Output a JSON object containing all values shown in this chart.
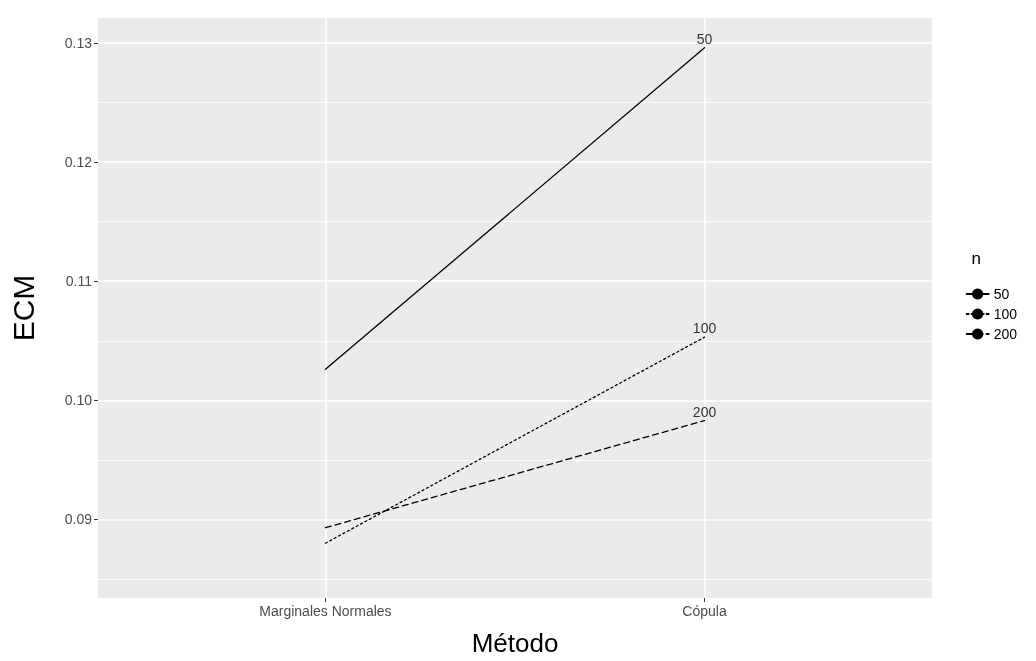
{
  "chart_data": {
    "type": "line",
    "xlabel": "Método",
    "ylabel": "ECM",
    "legend_title": "n",
    "categories": [
      "Marginales Normales",
      "Cópula"
    ],
    "series": [
      {
        "name": "50",
        "color": "#000000",
        "line_style": "solid",
        "values": [
          0.1026,
          0.1296
        ]
      },
      {
        "name": "100",
        "color": "#000000",
        "line_style": "dotted",
        "values": [
          0.088,
          0.1053
        ]
      },
      {
        "name": "200",
        "color": "#000000",
        "line_style": "dashed",
        "values": [
          0.0893,
          0.0983
        ]
      }
    ],
    "annotations": [
      {
        "text": "50",
        "x": "Cópula",
        "y": 0.1296
      },
      {
        "text": "100",
        "x": "Cópula",
        "y": 0.1053
      },
      {
        "text": "200",
        "x": "Cópula",
        "y": 0.0983
      }
    ],
    "ylim": [
      0.0834,
      0.1321
    ],
    "yticks": [
      0.09,
      {
        "value": 0.1,
        "label": "0.10"
      },
      0.11,
      0.12,
      0.13
    ],
    "grid": true,
    "legend": "right",
    "marker": "none"
  }
}
